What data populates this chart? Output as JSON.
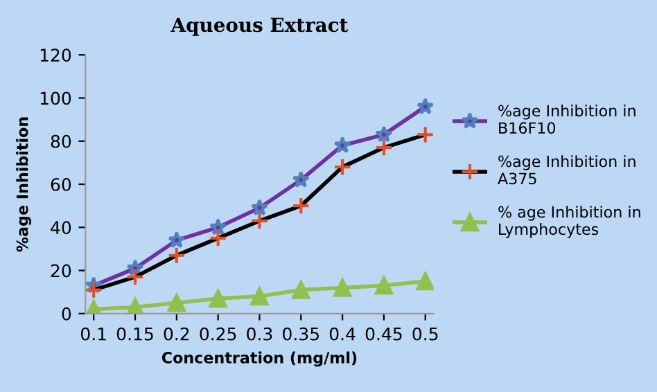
{
  "chart_data": {
    "type": "line",
    "title": "Aqueous Extract",
    "xlabel": "Concentration (mg/ml)",
    "ylabel": "%age Inhibition",
    "categories": [
      "0.1",
      "0.15",
      "0.2",
      "0.25",
      "0.3",
      "0.35",
      "0.4",
      "0.45",
      "0.5"
    ],
    "series": [
      {
        "name": "%age Inhibition in\nB16F10",
        "color": "#7030a0",
        "marker": "star",
        "values": [
          13,
          21,
          34,
          40,
          49,
          62,
          78,
          83,
          96
        ]
      },
      {
        "name": "%age Inhibition in\nA375",
        "color": "#000000",
        "marker": "cross",
        "values": [
          11,
          17,
          27,
          35,
          43,
          50,
          68,
          77,
          83
        ]
      },
      {
        "name": "% age Inhibition in\nLymphocytes",
        "color": "#92c050",
        "marker": "triangle",
        "values": [
          2,
          3,
          5,
          7,
          8,
          11,
          12,
          13,
          15
        ]
      }
    ],
    "ylim": [
      0,
      120
    ],
    "yticks": [
      0,
      20,
      40,
      60,
      80,
      100,
      120
    ],
    "grid": false,
    "legend": "right",
    "line_style": "solid"
  }
}
